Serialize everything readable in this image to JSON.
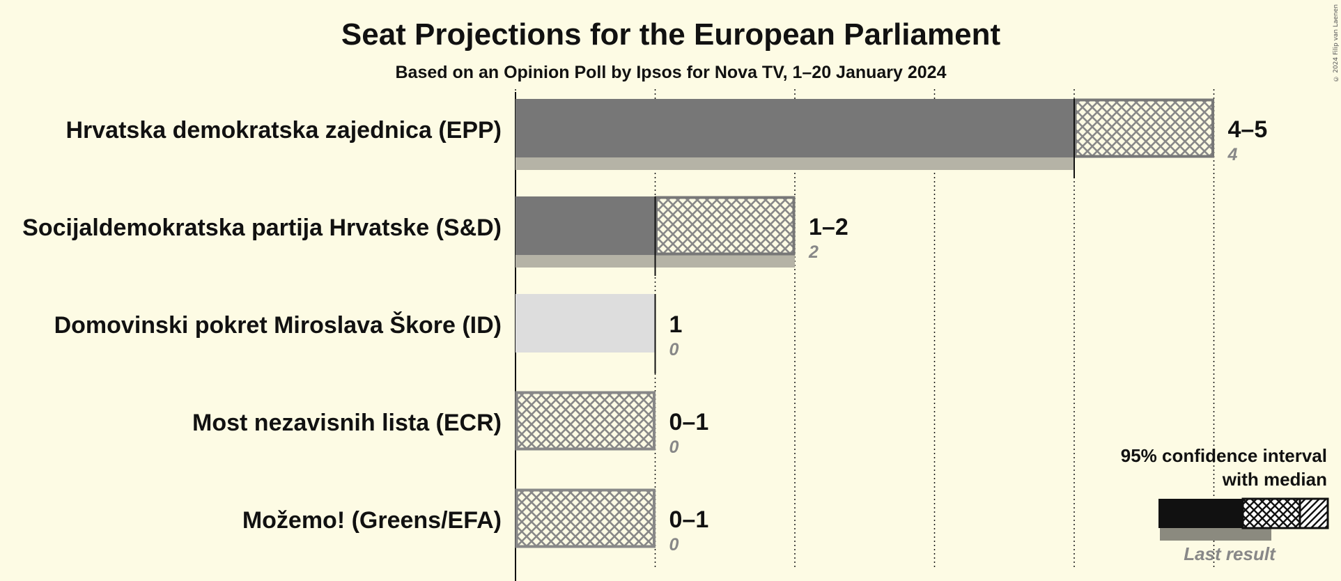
{
  "chart_data": {
    "type": "bar",
    "title": "Seat Projections for the European Parliament",
    "subtitle": "Based on an Opinion Poll by Ipsos for Nova TV, 1–20 January 2024",
    "categories": [
      "Hrvatska demokratska zajednica (EPP)",
      "Socijaldemokratska partija Hrvatske (S&D)",
      "Domovinski pokret Miroslava Škore (ID)",
      "Most nezavisnih lista (ECR)",
      "Možemo! (Greens/EFA)"
    ],
    "series": [
      {
        "name": "95% confidence interval with median",
        "ci_low": [
          4,
          1,
          1,
          0,
          0
        ],
        "ci_high": [
          5,
          2,
          1,
          1,
          1
        ],
        "median": [
          4,
          1,
          1,
          0,
          0
        ]
      },
      {
        "name": "Last result",
        "values": [
          4,
          2,
          0,
          0,
          0
        ]
      }
    ],
    "range_labels": [
      "4–5",
      "1–2",
      "1",
      "0–1",
      "0–1"
    ],
    "last_result_labels": [
      "4",
      "2",
      "0",
      "0",
      "0"
    ],
    "xlim": [
      0,
      5
    ],
    "grid": true,
    "legend_position": "bottom-right",
    "colors": {
      "background": "#fdfbe4",
      "bar_epp": "#777777",
      "bar_sd": "#777777",
      "bar_id": "#dddddd",
      "bar_ecr": "#888888",
      "bar_greens": "#888888",
      "last_result": "#b5b3a6",
      "text": "#111111",
      "muted": "#888888"
    }
  },
  "legend": {
    "line1": "95% confidence interval",
    "line2": "with median",
    "last_result": "Last result"
  },
  "copyright": "© 2024 Filip van Laenen"
}
